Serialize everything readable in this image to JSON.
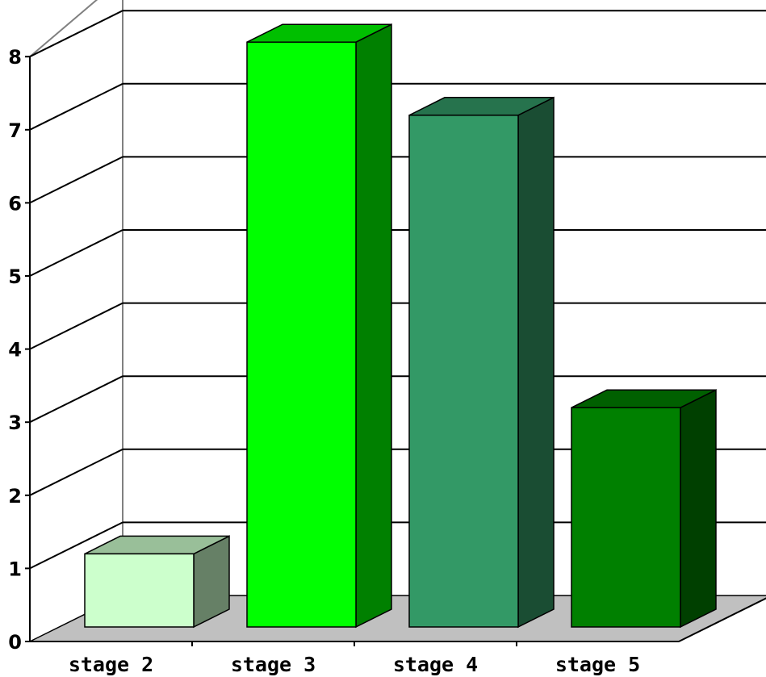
{
  "chart_data": {
    "type": "bar",
    "title": "",
    "xlabel": "",
    "ylabel": "",
    "categories": [
      "stage 2",
      "stage 3",
      "stage 4",
      "stage 5"
    ],
    "values": [
      1,
      8,
      7,
      3
    ],
    "ylim": [
      0,
      8
    ],
    "yticks": [
      "0",
      "1",
      "2",
      "3",
      "4",
      "5",
      "6",
      "7",
      "8"
    ],
    "grid": true,
    "style": "3d",
    "colors": [
      {
        "front": "#ccffcc",
        "top": "#99bf99",
        "side": "#668066"
      },
      {
        "front": "#00ff00",
        "top": "#00bf00",
        "side": "#008000"
      },
      {
        "front": "#339966",
        "top": "#26734d",
        "side": "#1a4d33"
      },
      {
        "front": "#008000",
        "top": "#006000",
        "side": "#004000"
      }
    ],
    "floor_color": "#c0c0c0",
    "wall_color": "#808080",
    "grid_color": "#000000"
  }
}
